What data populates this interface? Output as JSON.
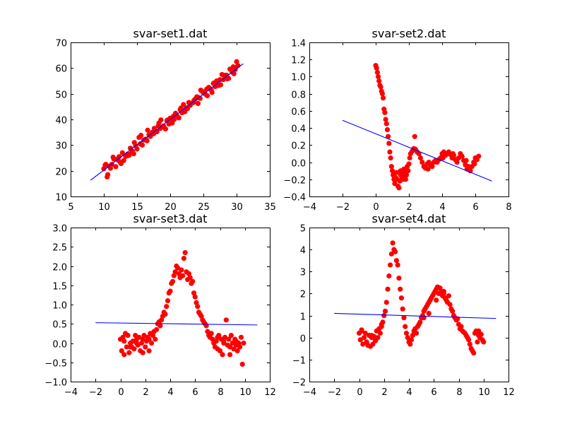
{
  "chart_data": [
    {
      "type": "scatter",
      "title": "svar-set1.dat",
      "xlabel": "",
      "ylabel": "",
      "xlim": [
        5,
        35
      ],
      "ylim": [
        10,
        70
      ],
      "xticks": [
        5,
        10,
        15,
        20,
        25,
        30,
        35
      ],
      "yticks": [
        10,
        20,
        30,
        40,
        50,
        60,
        70
      ],
      "grid": false,
      "point_color": "#ff0000",
      "line_color": "#0000ff",
      "fit_line": {
        "x": [
          8,
          31
        ],
        "y": [
          16.3,
          61.7
        ]
      },
      "series": [
        {
          "x": [
            10,
            10.3,
            10.5,
            10.8,
            11,
            11.2,
            11.5,
            11.8,
            12,
            12.3,
            12.5,
            12.8,
            13,
            13.3,
            13.5,
            13.8,
            14,
            14.3,
            14.5,
            14.8,
            15,
            15.3,
            15.5,
            15.8,
            16,
            16.3,
            16.5,
            16.8,
            17,
            17.3,
            17.5,
            17.8,
            18,
            18.3,
            18.5,
            18.8,
            19,
            19.3,
            19.5,
            19.8,
            20,
            20.3,
            20.5,
            20.8,
            21,
            21.3,
            21.5,
            21.8,
            22,
            22.3,
            22.5,
            22.8,
            23,
            23.3,
            23.5,
            23.8,
            24,
            24.3,
            24.5,
            24.8,
            25,
            25.3,
            25.5,
            25.8,
            26,
            26.3,
            26.5,
            26.8,
            27,
            27.3,
            27.5,
            27.8,
            28,
            28.3,
            28.5,
            28.8,
            29,
            29.3,
            29.5,
            29.8,
            30,
            30.2,
            10.6,
            11.4,
            12.6,
            13.6,
            14.6,
            15.6,
            16.6,
            17.6,
            18.6,
            19.6,
            20.6,
            21.6,
            22.6,
            23.6,
            24.6,
            25.6,
            26.6,
            27.6,
            28.6,
            29.6,
            10.2,
            12.2,
            14.2,
            16.2,
            18.2,
            20.2,
            22.2,
            24.2,
            26.2,
            28.2
          ],
          "y": [
            20.8,
            22.5,
            17.6,
            21.8,
            21,
            22.5,
            24.6,
            21.6,
            24.5,
            25.5,
            23.2,
            27,
            24,
            25.6,
            25.8,
            26,
            28.8,
            27.7,
            26.6,
            29.7,
            28.5,
            33,
            30.5,
            30,
            32,
            32.3,
            31.7,
            34,
            33.4,
            35,
            34.4,
            35.5,
            35.2,
            38.6,
            36.5,
            37,
            37.5,
            36.3,
            39.5,
            38.2,
            40.5,
            38.6,
            41.3,
            42.4,
            41.5,
            40.6,
            43.8,
            42.6,
            45.8,
            44,
            44.5,
            46.6,
            45.5,
            46.4,
            46.6,
            48,
            48.8,
            48.5,
            48.2,
            51,
            50.4,
            49.8,
            51.8,
            52.5,
            52,
            50.5,
            54,
            52.8,
            55,
            53.2,
            55.5,
            57.5,
            55.5,
            56.5,
            57.2,
            56,
            59.6,
            58.5,
            60.5,
            59.5,
            62.5,
            61,
            18.5,
            25.3,
            22.8,
            26.5,
            31,
            33.8,
            35.8,
            36.5,
            39.8,
            39.8,
            40,
            44.4,
            44.2,
            47.5,
            51.4,
            49.2,
            54.2,
            53.5,
            55.8,
            57.8,
            22.2,
            24,
            27,
            32,
            37.5,
            40,
            43,
            46.2,
            51.4,
            57.2
          ]
        }
      ]
    },
    {
      "type": "scatter",
      "title": "svar-set2.dat",
      "xlabel": "",
      "ylabel": "",
      "xlim": [
        -4,
        8
      ],
      "ylim": [
        -0.4,
        1.4
      ],
      "xticks": [
        -4,
        -2,
        0,
        2,
        4,
        6,
        8
      ],
      "yticks": [
        -0.4,
        -0.2,
        0.0,
        0.2,
        0.4,
        0.6,
        0.8,
        1.0,
        1.2,
        1.4
      ],
      "tick_labels_y": [
        "−0.4",
        "−0.2",
        "0.0",
        "0.2",
        "0.4",
        "0.6",
        "0.8",
        "1.0",
        "1.2",
        "1.4"
      ],
      "grid": false,
      "point_color": "#ff0000",
      "line_color": "#0000ff",
      "fit_line": {
        "x": [
          -2,
          7
        ],
        "y": [
          0.49,
          -0.22
        ]
      },
      "series": [
        {
          "x": [
            0,
            0.05,
            0.1,
            0.15,
            0.2,
            0.25,
            0.3,
            0.35,
            0.4,
            0.45,
            0.5,
            0.55,
            0.6,
            0.65,
            0.7,
            0.75,
            0.8,
            0.85,
            0.9,
            0.95,
            1,
            1.05,
            1.1,
            1.15,
            1.2,
            1.25,
            1.3,
            1.35,
            1.4,
            1.45,
            1.5,
            1.55,
            1.6,
            1.65,
            1.7,
            1.75,
            1.8,
            1.85,
            1.9,
            1.95,
            2,
            2.05,
            2.1,
            2.2,
            2.3,
            2.4,
            2.5,
            2.6,
            2.7,
            2.8,
            2.9,
            3,
            3.1,
            3.2,
            3.3,
            3.4,
            3.5,
            3.6,
            3.7,
            3.8,
            3.9,
            4,
            4.1,
            4.2,
            4.3,
            4.4,
            4.5,
            4.6,
            4.7,
            4.8,
            4.9,
            5,
            5.1,
            5.2,
            5.3,
            5.4,
            5.5,
            5.6,
            5.7,
            5.8,
            5.9,
            6,
            6.1,
            6.2,
            1.5,
            1.6,
            1.7,
            1.8,
            2.35,
            3.15,
            4.05,
            4.65,
            5.45,
            5.95
          ],
          "y": [
            1.13,
            1.1,
            1.05,
            1.0,
            0.95,
            0.9,
            0.88,
            0.83,
            0.8,
            0.75,
            0.62,
            0.58,
            0.5,
            0.45,
            0.38,
            0.3,
            0.22,
            0.12,
            0.05,
            -0.05,
            -0.1,
            -0.15,
            -0.2,
            -0.25,
            -0.18,
            -0.12,
            -0.2,
            -0.28,
            -0.3,
            -0.22,
            -0.15,
            -0.1,
            -0.18,
            -0.2,
            -0.12,
            -0.1,
            -0.08,
            -0.15,
            -0.05,
            -0.1,
            -0.02,
            0.05,
            0.1,
            0.13,
            0.16,
            0.15,
            0.12,
            0.1,
            0.05,
            0.0,
            -0.05,
            -0.07,
            -0.02,
            0.0,
            -0.03,
            -0.05,
            0.0,
            0.02,
            0.0,
            0.03,
            0.05,
            0.1,
            0.12,
            0.08,
            0.1,
            0.12,
            0.09,
            0.05,
            0.08,
            0.03,
            0.0,
            0.05,
            0.1,
            0.07,
            0.02,
            -0.03,
            -0.08,
            -0.05,
            -0.1,
            -0.05,
            0.0,
            0.05,
            0.03,
            0.07,
            -0.1,
            -0.15,
            -0.08,
            -0.2,
            0.3,
            -0.08,
            0.05,
            0.1,
            0.02,
            -0.02
          ]
        }
      ]
    },
    {
      "type": "scatter",
      "title": "svar-set3.dat",
      "xlabel": "",
      "ylabel": "",
      "xlim": [
        -4,
        12
      ],
      "ylim": [
        -1.0,
        3.0
      ],
      "xticks": [
        -4,
        -2,
        0,
        2,
        4,
        6,
        8,
        10,
        12
      ],
      "yticks": [
        -1.0,
        -0.5,
        0.0,
        0.5,
        1.0,
        1.5,
        2.0,
        2.5,
        3.0
      ],
      "tick_labels_y": [
        "−1.0",
        "−0.5",
        "0.0",
        "0.5",
        "1.0",
        "1.5",
        "2.0",
        "2.5",
        "3.0"
      ],
      "grid": false,
      "point_color": "#ff0000",
      "line_color": "#0000ff",
      "fit_line": {
        "x": [
          -2,
          11
        ],
        "y": [
          0.53,
          0.47
        ]
      },
      "series": [
        {
          "x": [
            0,
            0.1,
            0.2,
            0.3,
            0.4,
            0.5,
            0.6,
            0.7,
            0.8,
            0.9,
            1,
            1.1,
            1.2,
            1.3,
            1.4,
            1.5,
            1.6,
            1.7,
            1.8,
            1.9,
            2,
            2.1,
            2.2,
            2.3,
            2.4,
            2.5,
            2.6,
            2.7,
            2.8,
            2.9,
            3,
            3.1,
            3.2,
            3.3,
            3.4,
            3.5,
            3.6,
            3.7,
            3.8,
            3.9,
            4,
            4.1,
            4.2,
            4.3,
            4.4,
            4.5,
            4.6,
            4.7,
            4.8,
            4.9,
            5,
            5.1,
            5.2,
            5.3,
            5.4,
            5.5,
            5.6,
            5.7,
            5.8,
            5.9,
            6,
            6.1,
            6.2,
            6.3,
            6.4,
            6.5,
            6.6,
            6.7,
            6.8,
            6.9,
            7,
            7.1,
            7.2,
            7.3,
            7.4,
            7.5,
            7.6,
            7.7,
            7.8,
            7.9,
            8,
            8.1,
            8.2,
            8.3,
            8.4,
            8.5,
            8.6,
            8.7,
            8.8,
            8.9,
            9,
            9.1,
            9.2,
            9.3,
            9.4,
            9.5,
            9.6,
            9.7,
            9.8,
            9.9,
            0.3,
            0.8,
            1.3,
            1.8,
            2.3,
            7.3,
            7.8,
            8.3,
            8.8,
            9.3
          ],
          "y": [
            0.1,
            -0.2,
            0.15,
            -0.3,
            0.25,
            -0.1,
            0.2,
            -0.25,
            0.0,
            -0.1,
            0.05,
            -0.15,
            0.2,
            0.1,
            -0.05,
            0.15,
            -0.2,
            0.0,
            0.1,
            0.2,
            -0.1,
            0.05,
            0.15,
            -0.2,
            0.25,
            0.0,
            0.2,
            0.3,
            0.1,
            0.35,
            0.5,
            0.55,
            0.45,
            0.6,
            0.7,
            0.8,
            0.75,
            0.95,
            1.1,
            1.3,
            1.35,
            1.55,
            1.6,
            1.75,
            1.85,
            2.0,
            1.95,
            1.8,
            1.7,
            1.9,
            1.75,
            2.2,
            2.35,
            1.85,
            1.65,
            1.8,
            1.7,
            1.55,
            1.6,
            1.3,
            1.2,
            1.05,
            0.95,
            0.8,
            0.75,
            0.7,
            0.6,
            0.55,
            0.5,
            0.45,
            0.3,
            0.2,
            0.15,
            0.25,
            0.1,
            0.0,
            -0.1,
            0.05,
            0.15,
            0.2,
            -0.2,
            0.1,
            -0.3,
            0.05,
            0.15,
            0.6,
            -0.05,
            0.1,
            -0.1,
            0.2,
            0.0,
            -0.15,
            0.1,
            0.05,
            -0.2,
            0.0,
            -0.1,
            0.15,
            -0.55,
            0.0,
            0.05,
            -0.1,
            0.0,
            -0.25,
            0.1,
            0.25,
            -0.15,
            0.0,
            -0.3,
            -0.05
          ]
        }
      ]
    },
    {
      "type": "scatter",
      "title": "svar-set4.dat",
      "xlabel": "",
      "ylabel": "",
      "xlim": [
        -4,
        12
      ],
      "ylim": [
        -2,
        5
      ],
      "xticks": [
        -4,
        -2,
        0,
        2,
        4,
        6,
        8,
        10,
        12
      ],
      "yticks": [
        -2,
        -1,
        0,
        1,
        2,
        3,
        4,
        5
      ],
      "tick_labels_y": [
        "−2",
        "−1",
        "0",
        "1",
        "2",
        "3",
        "4",
        "5"
      ],
      "grid": false,
      "point_color": "#ff0000",
      "line_color": "#0000ff",
      "fit_line": {
        "x": [
          -2,
          11
        ],
        "y": [
          1.1,
          0.87
        ]
      },
      "series": [
        {
          "x": [
            0,
            0.1,
            0.2,
            0.3,
            0.4,
            0.5,
            0.6,
            0.7,
            0.8,
            0.9,
            1,
            1.1,
            1.2,
            1.3,
            1.4,
            1.5,
            1.6,
            1.7,
            1.8,
            1.9,
            2,
            2.1,
            2.2,
            2.3,
            2.4,
            2.5,
            2.6,
            2.7,
            2.8,
            2.9,
            3,
            3.1,
            3.2,
            3.3,
            3.4,
            3.5,
            3.6,
            3.7,
            3.8,
            3.9,
            4,
            4.1,
            4.2,
            4.3,
            4.4,
            4.5,
            4.6,
            4.7,
            4.8,
            4.9,
            5,
            5.1,
            5.2,
            5.3,
            5.4,
            5.5,
            5.6,
            5.7,
            5.8,
            5.9,
            6,
            6.1,
            6.2,
            6.3,
            6.4,
            6.5,
            6.6,
            6.7,
            6.8,
            6.9,
            7,
            7.1,
            7.2,
            7.3,
            7.4,
            7.5,
            7.6,
            7.7,
            7.8,
            7.9,
            8,
            8.1,
            8.2,
            8.3,
            8.4,
            8.5,
            8.6,
            8.7,
            8.8,
            8.9,
            9,
            9.1,
            9.2,
            9.3,
            9.4,
            9.5,
            9.6,
            9.7,
            9.8,
            9.9,
            10,
            0.2,
            0.6,
            1.0,
            1.4,
            1.8,
            5.2,
            5.6,
            6.2,
            6.8,
            9.6
          ],
          "y": [
            0.2,
            -0.1,
            0.35,
            -0.3,
            0.0,
            0.2,
            -0.2,
            -0.35,
            0.1,
            -0.4,
            0.0,
            -0.3,
            0.05,
            -0.15,
            0.3,
            0.0,
            0.4,
            0.2,
            0.5,
            0.7,
            1.0,
            1.2,
            1.6,
            2.2,
            2.8,
            3.3,
            3.8,
            4.3,
            4.0,
            3.9,
            3.5,
            3.3,
            2.7,
            2.2,
            1.8,
            1.3,
            0.9,
            0.5,
            0.2,
            0.0,
            -0.2,
            -0.3,
            -0.1,
            0.1,
            0.3,
            0.4,
            0.2,
            0.5,
            0.6,
            0.7,
            0.9,
            1.0,
            1.2,
            1.3,
            1.4,
            1.5,
            1.6,
            1.7,
            1.8,
            1.9,
            2.0,
            2.1,
            2.2,
            2.3,
            2.0,
            2.25,
            2.1,
            1.9,
            2.0,
            1.8,
            1.7,
            1.6,
            1.9,
            1.5,
            1.3,
            1.2,
            1.0,
            0.9,
            0.8,
            0.85,
            0.6,
            0.4,
            0.5,
            0.3,
            0.25,
            0.2,
            0.1,
            0.0,
            -0.1,
            -0.3,
            -0.5,
            -0.6,
            -0.7,
            0.2,
            0.3,
            -0.2,
            0.1,
            0.0,
            0.15,
            -0.1,
            -0.2,
            0.3,
            -0.2,
            0.1,
            -0.05,
            0.6,
            0.9,
            1.1,
            1.7,
            2.1,
            0.3
          ]
        }
      ]
    }
  ]
}
